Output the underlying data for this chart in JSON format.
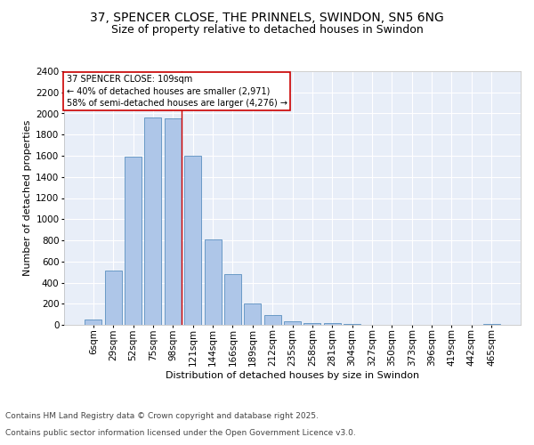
{
  "title1": "37, SPENCER CLOSE, THE PRINNELS, SWINDON, SN5 6NG",
  "title2": "Size of property relative to detached houses in Swindon",
  "xlabel": "Distribution of detached houses by size in Swindon",
  "ylabel": "Number of detached properties",
  "categories": [
    "6sqm",
    "29sqm",
    "52sqm",
    "75sqm",
    "98sqm",
    "121sqm",
    "144sqm",
    "166sqm",
    "189sqm",
    "212sqm",
    "235sqm",
    "258sqm",
    "281sqm",
    "304sqm",
    "327sqm",
    "350sqm",
    "373sqm",
    "396sqm",
    "419sqm",
    "442sqm",
    "465sqm"
  ],
  "values": [
    50,
    510,
    1590,
    1960,
    1950,
    1600,
    810,
    480,
    200,
    95,
    35,
    20,
    15,
    5,
    2,
    1,
    0,
    0,
    0,
    0,
    10
  ],
  "bar_color": "#aec6e8",
  "bar_edge_color": "#5a8fc0",
  "ylim": [
    0,
    2400
  ],
  "yticks": [
    0,
    200,
    400,
    600,
    800,
    1000,
    1200,
    1400,
    1600,
    1800,
    2000,
    2200,
    2400
  ],
  "annotation_title": "37 SPENCER CLOSE: 109sqm",
  "annotation_line1": "← 40% of detached houses are smaller (2,971)",
  "annotation_line2": "58% of semi-detached houses are larger (4,276) →",
  "annotation_box_color": "#ffffff",
  "annotation_box_edge": "#cc0000",
  "vline_color": "#cc0000",
  "footer1": "Contains HM Land Registry data © Crown copyright and database right 2025.",
  "footer2": "Contains public sector information licensed under the Open Government Licence v3.0.",
  "bg_color": "#e8eef8",
  "grid_color": "#ffffff",
  "title_fontsize": 10,
  "subtitle_fontsize": 9,
  "axis_label_fontsize": 8,
  "tick_fontsize": 7.5,
  "footer_fontsize": 6.5,
  "fig_bg_color": "#ffffff"
}
